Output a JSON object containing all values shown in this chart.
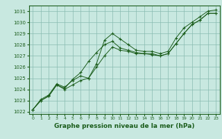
{
  "xlabel": "Graphe pression niveau de la mer (hPa)",
  "xlim": [
    -0.5,
    23.5
  ],
  "ylim": [
    1021.8,
    1031.5
  ],
  "yticks": [
    1022,
    1023,
    1024,
    1025,
    1026,
    1027,
    1028,
    1029,
    1030,
    1031
  ],
  "xticks": [
    0,
    1,
    2,
    3,
    4,
    5,
    6,
    7,
    8,
    9,
    10,
    11,
    12,
    13,
    14,
    15,
    16,
    17,
    18,
    19,
    20,
    21,
    22,
    23
  ],
  "background_color": "#c8e8e0",
  "grid_color": "#88bbb0",
  "line_color": "#1a5c1a",
  "series": [
    {
      "x": [
        0,
        1,
        2,
        3,
        4,
        5,
        6,
        7,
        8,
        9,
        10,
        11,
        12,
        13,
        14,
        15,
        16,
        17,
        18,
        19,
        20,
        21,
        22,
        23
      ],
      "y": [
        1022.2,
        1023.1,
        1023.5,
        1024.5,
        1024.2,
        1024.8,
        1025.2,
        1025.0,
        1026.3,
        1028.4,
        1029.0,
        1028.5,
        1028.0,
        1027.5,
        1027.4,
        1027.4,
        1027.2,
        1027.4,
        1028.6,
        1029.5,
        1030.0,
        1030.5,
        1031.0,
        1031.1
      ]
    },
    {
      "x": [
        0,
        1,
        2,
        3,
        4,
        5,
        6,
        7,
        8,
        9,
        10,
        11,
        12,
        13,
        14,
        15,
        16,
        17,
        18,
        19,
        20,
        21,
        22,
        23
      ],
      "y": [
        1022.2,
        1023.0,
        1023.4,
        1024.4,
        1024.0,
        1024.4,
        1024.8,
        1025.0,
        1026.0,
        1027.0,
        1027.8,
        1027.5,
        1027.4,
        1027.2,
        1027.2,
        1027.2,
        1027.0,
        1027.2,
        1028.1,
        1029.0,
        1029.8,
        1030.2,
        1030.8,
        1030.8
      ]
    },
    {
      "x": [
        0,
        1,
        2,
        3,
        4,
        5,
        6,
        7,
        8,
        9,
        10,
        11,
        12,
        13,
        14,
        15,
        16,
        17,
        18,
        19,
        20,
        21,
        22,
        23
      ],
      "y": [
        1022.2,
        1023.0,
        1023.4,
        1024.4,
        1024.1,
        1024.9,
        1025.5,
        1026.5,
        1027.3,
        1028.0,
        1028.3,
        1027.7,
        1027.5,
        1027.3,
        1027.2,
        1027.1,
        1027.0,
        1027.2,
        1028.1,
        1029.0,
        1029.8,
        1030.2,
        1030.8,
        1030.8
      ]
    }
  ]
}
